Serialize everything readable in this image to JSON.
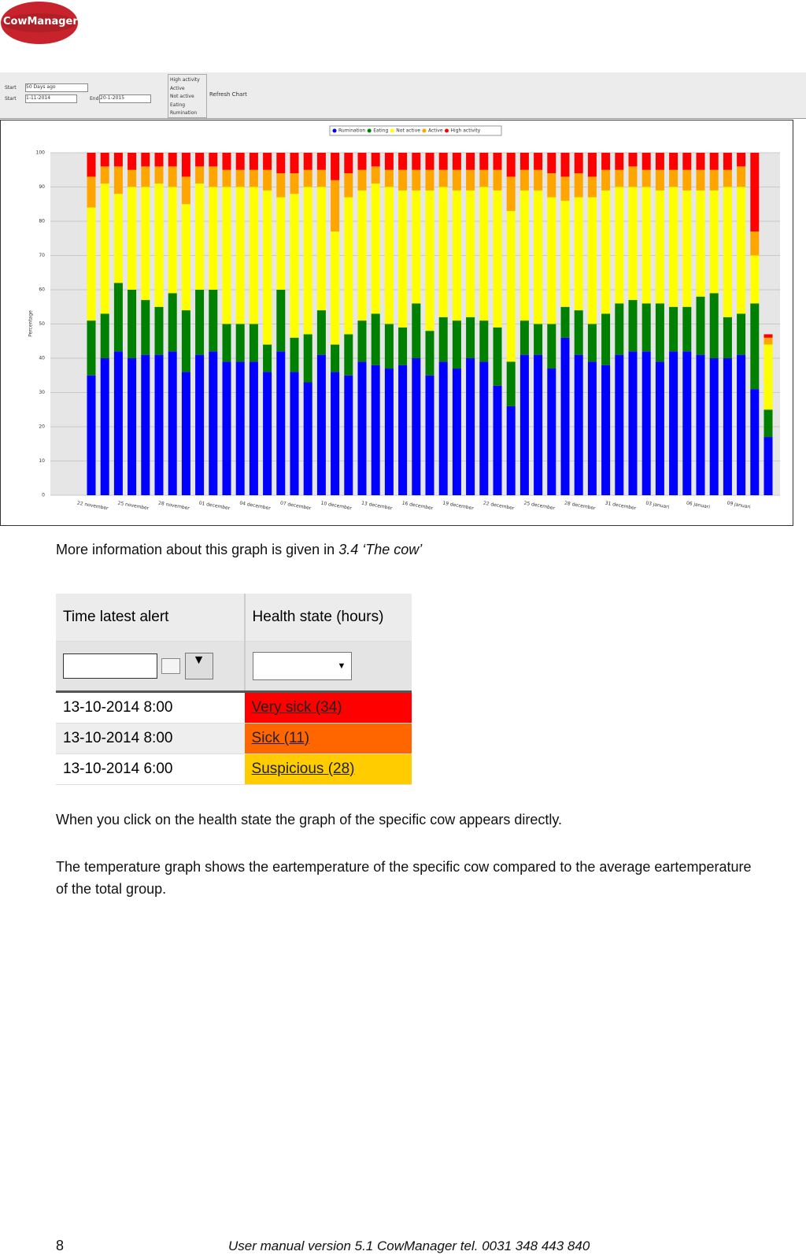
{
  "header": {
    "logo": "CowManager"
  },
  "toolbar": {
    "period_label": "Start",
    "period_value": "50 Days ago",
    "start_label": "Start",
    "start_date": "1-11-2014",
    "end_label": "End",
    "end_date": "20-1-2015",
    "checkboxes": [
      "High activity",
      "Active",
      "Not active",
      "Eating",
      "Rumination"
    ],
    "refresh": "Refresh Chart"
  },
  "chart_data": {
    "type": "bar",
    "stacked": true,
    "y_label": "Percentage",
    "grid": true,
    "ylim": [
      0,
      100
    ],
    "yticks": [
      0,
      10,
      20,
      30,
      40,
      50,
      60,
      70,
      80,
      90,
      100
    ],
    "categories": [
      "22 november",
      null,
      null,
      "25 november",
      null,
      null,
      "28 november",
      null,
      null,
      "01 december",
      null,
      null,
      "04 december",
      null,
      null,
      "07 december",
      null,
      null,
      "10 december",
      null,
      null,
      "13 december",
      null,
      null,
      "16 december",
      null,
      null,
      "19 december",
      null,
      null,
      "22 december",
      null,
      null,
      "25 december",
      null,
      null,
      "28 december",
      null,
      null,
      "31 december",
      null,
      null,
      "03 januari",
      null,
      null,
      "06 januari",
      null,
      null,
      "09 januari",
      null,
      null
    ],
    "series": [
      {
        "name": "Rumination",
        "color": "#0000ff",
        "values": [
          35,
          40,
          42,
          40,
          41,
          41,
          42,
          36,
          41,
          42,
          39,
          39,
          39,
          36,
          42,
          36,
          33,
          41,
          36,
          35,
          39,
          38,
          37,
          38,
          40,
          35,
          39,
          37,
          40,
          39,
          32,
          26,
          41,
          41,
          37,
          46,
          41,
          39,
          38,
          41,
          42,
          42,
          39,
          42,
          42,
          41,
          40,
          40,
          41,
          31,
          17
        ]
      },
      {
        "name": "Eating",
        "color": "#008000",
        "values": [
          16,
          13,
          20,
          20,
          16,
          14,
          17,
          18,
          19,
          18,
          11,
          11,
          11,
          8,
          18,
          10,
          14,
          13,
          8,
          12,
          12,
          15,
          13,
          11,
          16,
          13,
          13,
          14,
          12,
          12,
          17,
          13,
          10,
          9,
          13,
          9,
          13,
          11,
          15,
          15,
          15,
          14,
          17,
          13,
          13,
          17,
          19,
          12,
          12,
          25,
          8
        ]
      },
      {
        "name": "Not active",
        "color": "#ffff00",
        "values": [
          33,
          38,
          26,
          30,
          33,
          36,
          31,
          31,
          31,
          30,
          40,
          40,
          40,
          45,
          27,
          42,
          43,
          36,
          33,
          40,
          38,
          38,
          40,
          40,
          33,
          41,
          38,
          38,
          37,
          39,
          40,
          44,
          38,
          39,
          37,
          31,
          33,
          37,
          36,
          34,
          33,
          34,
          33,
          35,
          34,
          31,
          30,
          38,
          37,
          14,
          19
        ]
      },
      {
        "name": "Active",
        "color": "#ffa500",
        "values": [
          9,
          5,
          8,
          5,
          6,
          5,
          6,
          8,
          5,
          6,
          5,
          5,
          5,
          6,
          7,
          6,
          5,
          5,
          15,
          7,
          6,
          5,
          5,
          6,
          6,
          6,
          5,
          6,
          6,
          5,
          6,
          10,
          6,
          6,
          7,
          7,
          7,
          6,
          6,
          5,
          6,
          5,
          6,
          5,
          6,
          6,
          6,
          5,
          6,
          7,
          2
        ]
      },
      {
        "name": "High activity",
        "color": "#ff0000",
        "values": [
          7,
          4,
          4,
          5,
          4,
          4,
          4,
          7,
          4,
          4,
          5,
          5,
          5,
          5,
          6,
          6,
          5,
          5,
          8,
          6,
          5,
          4,
          5,
          5,
          5,
          5,
          5,
          5,
          5,
          5,
          5,
          7,
          5,
          5,
          6,
          7,
          6,
          7,
          5,
          5,
          4,
          5,
          5,
          5,
          5,
          5,
          5,
          5,
          4,
          23,
          1
        ]
      }
    ]
  },
  "text1": {
    "before": "More information about this graph is given in",
    "ref": "3.4 ‘The cow’"
  },
  "table": {
    "headers": [
      "Time latest alert",
      "Health state (hours)"
    ],
    "rows": [
      [
        "13-10-2014 8:00",
        "Very sick (34)"
      ],
      [
        "13-10-2014 8:00",
        "Sick (11)"
      ],
      [
        "13-10-2014 6:00",
        "Suspicious (28)"
      ]
    ]
  },
  "paragraphs": [
    "When you click on the health state the graph of the specific cow appears directly.",
    "The temperature graph shows the eartemperature of the specific cow compared to the average eartemperature of the total group."
  ],
  "footer": {
    "page": "8",
    "text": "User manual version 5.1 CowManager tel. 0031 348 443 840"
  }
}
